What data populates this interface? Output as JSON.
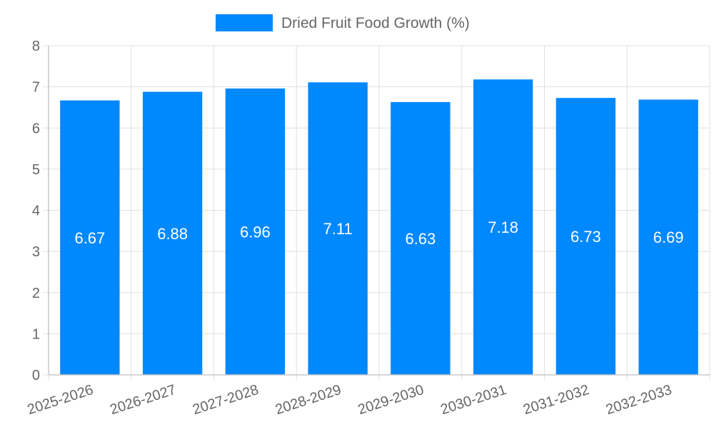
{
  "chart_data": {
    "type": "bar",
    "categories": [
      "2025-2026",
      "2026-2027",
      "2027-2028",
      "2028-2029",
      "2029-2030",
      "2030-2031",
      "2031-2032",
      "2032-2033"
    ],
    "series": [
      {
        "name": "Dried Fruit Food Growth (%)",
        "color": "#0088ff",
        "values": [
          6.67,
          6.88,
          6.96,
          7.11,
          6.63,
          7.18,
          6.73,
          6.69
        ]
      }
    ],
    "ylim": [
      0,
      8
    ],
    "yticks": [
      0,
      1,
      2,
      3,
      4,
      5,
      6,
      7,
      8
    ],
    "grid": true,
    "legend_position": "top-center",
    "data_labels": true
  }
}
